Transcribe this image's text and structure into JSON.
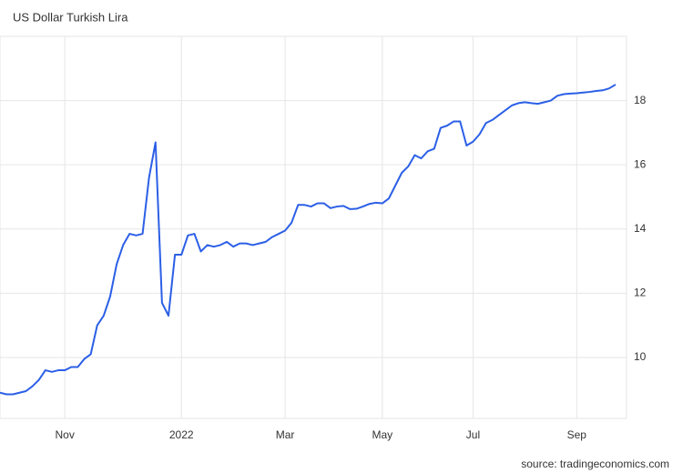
{
  "chart_data": {
    "type": "line",
    "title": "US Dollar Turkish Lira",
    "source": "source: tradingeconomics.com",
    "color": "#2b5fe6",
    "grid": true,
    "ylim": [
      8.1,
      20
    ],
    "yticks": [
      10,
      12,
      14,
      16,
      18
    ],
    "categories": [
      null,
      null,
      null,
      null,
      null,
      null,
      null,
      null,
      null,
      null,
      "Nov",
      null,
      null,
      null,
      null,
      null,
      null,
      null,
      null,
      null,
      null,
      null,
      null,
      null,
      null,
      null,
      null,
      null,
      "2022",
      null,
      null,
      null,
      null,
      null,
      null,
      null,
      null,
      null,
      null,
      null,
      null,
      null,
      null,
      null,
      "Mar",
      null,
      null,
      null,
      null,
      null,
      null,
      null,
      null,
      null,
      null,
      null,
      null,
      null,
      null,
      "May",
      null,
      null,
      null,
      null,
      null,
      null,
      null,
      null,
      null,
      null,
      null,
      null,
      null,
      "Jul",
      null,
      null,
      null,
      null,
      null,
      null,
      null,
      null,
      null,
      null,
      null,
      null,
      null,
      null,
      null,
      "Sep",
      null,
      null,
      null,
      null,
      null,
      null
    ],
    "values": [
      8.9,
      8.85,
      8.85,
      8.9,
      8.95,
      9.1,
      9.3,
      9.6,
      9.55,
      9.6,
      9.6,
      9.7,
      9.7,
      9.95,
      10.1,
      11.0,
      11.3,
      11.9,
      12.9,
      13.5,
      13.85,
      13.8,
      13.85,
      15.6,
      16.7,
      11.7,
      11.3,
      13.2,
      13.2,
      13.8,
      13.85,
      13.3,
      13.5,
      13.45,
      13.5,
      13.6,
      13.45,
      13.55,
      13.55,
      13.5,
      13.55,
      13.6,
      13.75,
      13.85,
      13.95,
      14.2,
      14.75,
      14.75,
      14.7,
      14.8,
      14.8,
      14.65,
      14.7,
      14.72,
      14.62,
      14.63,
      14.7,
      14.78,
      14.82,
      14.8,
      14.95,
      15.35,
      15.75,
      15.95,
      16.3,
      16.2,
      16.42,
      16.5,
      17.15,
      17.22,
      17.35,
      17.35,
      16.6,
      16.72,
      16.95,
      17.3,
      17.4,
      17.55,
      17.7,
      17.85,
      17.92,
      17.95,
      17.92,
      17.9,
      17.95,
      18.0,
      18.15,
      18.2,
      18.22,
      18.23,
      18.25,
      18.27,
      18.3,
      18.32,
      18.38,
      18.5
    ]
  }
}
